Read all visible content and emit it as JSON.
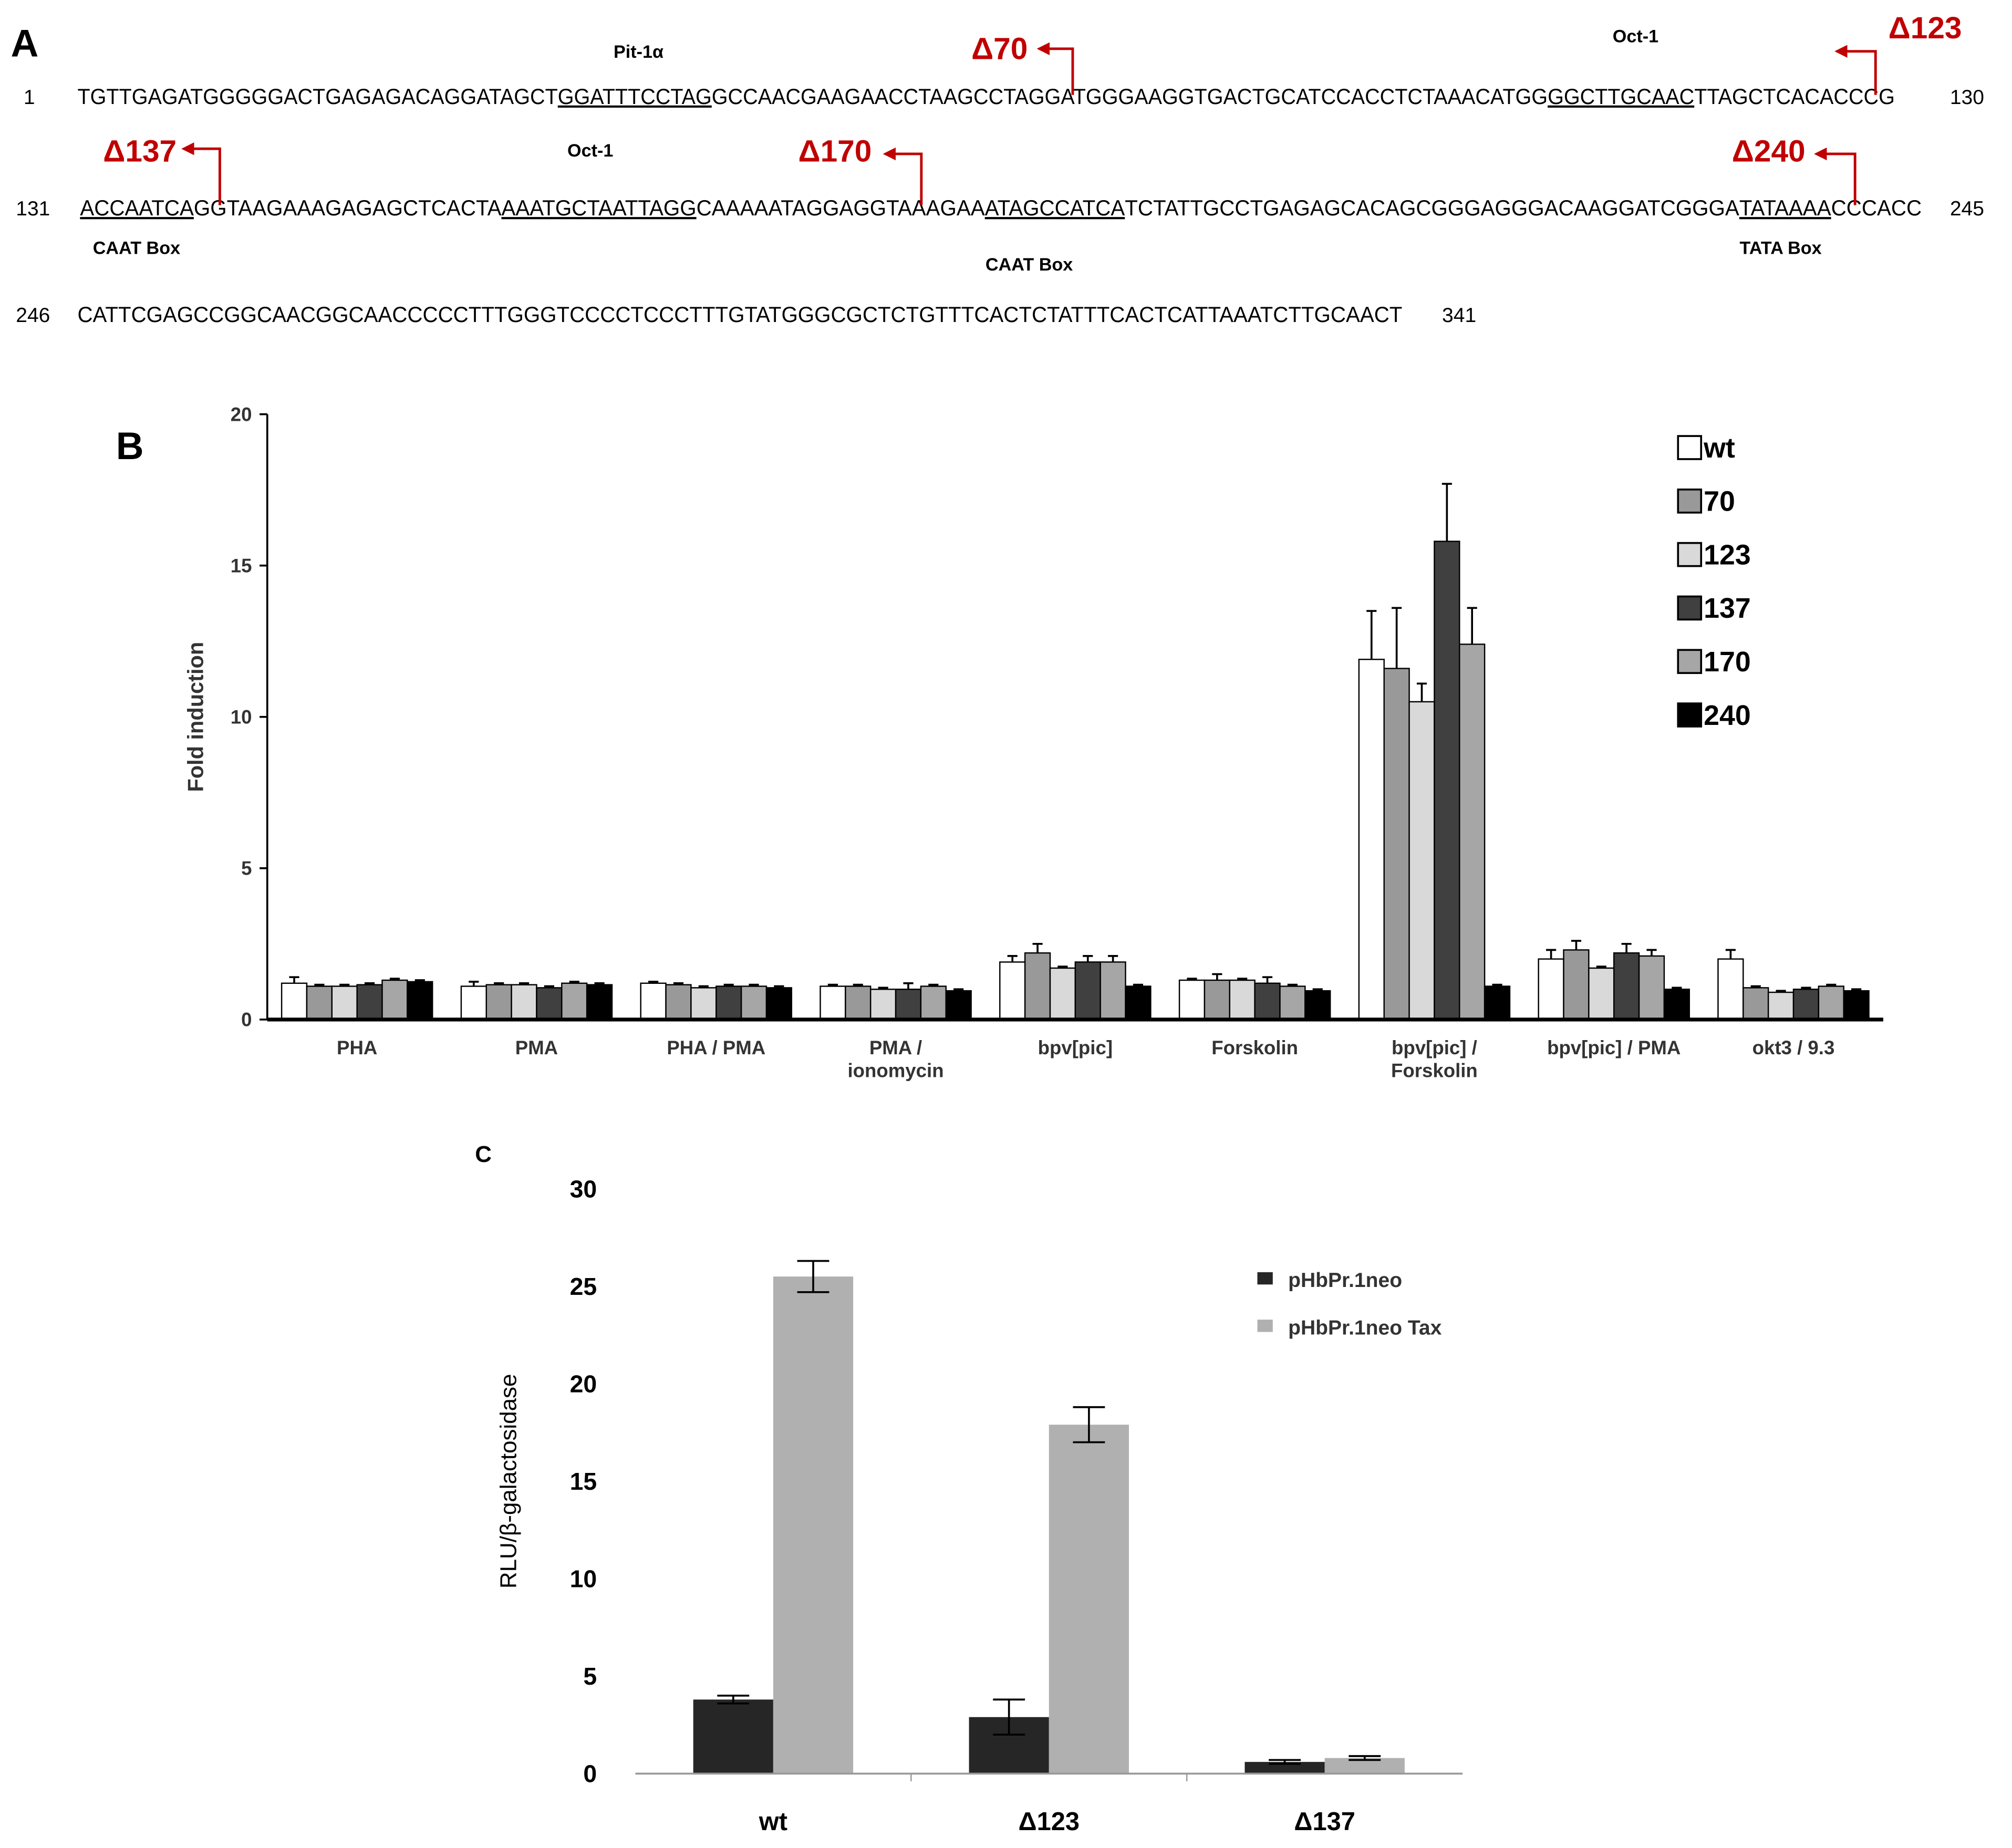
{
  "sequence_panel": {
    "panel_label": "A",
    "lines": [
      {
        "start": 1,
        "end": 130,
        "segments": [
          {
            "text": "TGTTGAGATGGGGGACTGAGAGACAGGATAGCT",
            "underline": false
          },
          {
            "text": "GGATTTCCTAG",
            "underline": true
          },
          {
            "text": "GCCAACGAAGAACCTAAGCCTAGGATGGGAAGGTGACTGCATCCACCTCTAAACATGG",
            "underline": false
          },
          {
            "text": "GGCTTGCAAC",
            "underline": true
          },
          {
            "text": "TTAGCTCACACCCG",
            "underline": false
          }
        ]
      },
      {
        "start": 131,
        "end": 245,
        "segments": [
          {
            "text": "ACCAATCA",
            "underline": true
          },
          {
            "text": "GGTAAGAAAGAGAGCTCACTA",
            "underline": false
          },
          {
            "text": "AAATGCTAATTAGG",
            "underline": true
          },
          {
            "text": "CAAAAATAGGAGGTAAAGAA",
            "underline": false
          },
          {
            "text": "ATAGCCATCA",
            "underline": true
          },
          {
            "text": "TCTATTGCCTGAGAGCACAGCGGGAGGGACAAGGATCGGGA",
            "underline": false
          },
          {
            "text": "TATAAAA",
            "underline": true
          },
          {
            "text": "CCCACC",
            "underline": false
          }
        ]
      },
      {
        "start": 246,
        "end": 341,
        "segments": [
          {
            "text": "CATTCGAGCCGGCAACGGCAACCCCCTTTGGGTCCCCTCCCTTTGTATGGGCGCTCTGTTTCACTCTATTTCACTCATTAAATCTTGCAACT",
            "underline": false
          }
        ]
      }
    ],
    "annotations": [
      "Pit-1α",
      "Oct-1",
      "Oct-1",
      "CAAT Box",
      "CAAT Box",
      "TATA Box"
    ],
    "deletions": [
      "Δ70",
      "Δ123",
      "Δ137",
      "Δ170",
      "Δ240"
    ]
  },
  "chart_data": [
    {
      "type": "bar",
      "panel_label": "B",
      "y_label": "Fold induction",
      "categories": [
        "PHA",
        "PMA",
        "PHA / PMA",
        "PMA /\nionomycin",
        "bpv[pic]",
        "Forskolin",
        "bpv[pic] /\nForskolin",
        "bpv[pic] / PMA",
        "okt3 / 9.3"
      ],
      "ylim": [
        0,
        20
      ],
      "yticks": [
        0,
        5,
        10,
        15,
        20
      ],
      "error_bars": "upper",
      "legend": "upper right",
      "series": [
        {
          "name": "wt",
          "color": "#ffffff",
          "values": [
            1.2,
            1.1,
            1.2,
            1.1,
            1.9,
            1.3,
            11.9,
            2.0,
            2.0
          ],
          "errors": [
            0.2,
            0.15,
            0.05,
            0.05,
            0.2,
            0.05,
            1.6,
            0.3,
            0.3
          ]
        },
        {
          "name": "70",
          "color": "#999999",
          "values": [
            1.1,
            1.15,
            1.15,
            1.1,
            2.2,
            1.3,
            11.6,
            2.3,
            1.05
          ],
          "errors": [
            0.05,
            0.05,
            0.05,
            0.05,
            0.3,
            0.2,
            2.0,
            0.3,
            0.05
          ]
        },
        {
          "name": "123",
          "color": "#d9d9d9",
          "values": [
            1.1,
            1.15,
            1.05,
            1.0,
            1.7,
            1.3,
            10.5,
            1.7,
            0.9
          ],
          "errors": [
            0.05,
            0.05,
            0.05,
            0.05,
            0.05,
            0.05,
            0.6,
            0.05,
            0.05
          ]
        },
        {
          "name": "137",
          "color": "#404040",
          "values": [
            1.15,
            1.05,
            1.1,
            1.0,
            1.9,
            1.2,
            15.8,
            2.2,
            1.0
          ],
          "errors": [
            0.05,
            0.05,
            0.05,
            0.2,
            0.2,
            0.2,
            1.9,
            0.3,
            0.05
          ]
        },
        {
          "name": "170",
          "color": "#a6a6a6",
          "values": [
            1.3,
            1.2,
            1.1,
            1.1,
            1.9,
            1.1,
            12.4,
            2.1,
            1.1
          ],
          "errors": [
            0.05,
            0.05,
            0.05,
            0.05,
            0.2,
            0.05,
            1.2,
            0.2,
            0.05
          ]
        },
        {
          "name": "240",
          "color": "#000000",
          "values": [
            1.25,
            1.15,
            1.05,
            0.95,
            1.1,
            0.95,
            1.1,
            1.0,
            0.95
          ],
          "errors": [
            0.05,
            0.05,
            0.05,
            0.05,
            0.05,
            0.05,
            0.05,
            0.05,
            0.05
          ]
        }
      ]
    },
    {
      "type": "bar",
      "panel_label": "C",
      "y_label": "RLU/β-galactosidase",
      "categories": [
        "wt",
        "Δ123",
        "Δ137"
      ],
      "ylim": [
        0,
        30
      ],
      "yticks": [
        0,
        5,
        10,
        15,
        20,
        25,
        30
      ],
      "error_bars": "both",
      "legend": "upper right",
      "series": [
        {
          "name": "pHbPr.1neo",
          "color": "#262626",
          "values": [
            3.8,
            2.9,
            0.6
          ],
          "errors": [
            0.2,
            0.9,
            0.1
          ]
        },
        {
          "name": "pHbPr.1neo Tax",
          "color": "#b0b0b0",
          "values": [
            25.5,
            17.9,
            0.8
          ],
          "errors": [
            0.8,
            0.9,
            0.1
          ]
        }
      ]
    }
  ]
}
